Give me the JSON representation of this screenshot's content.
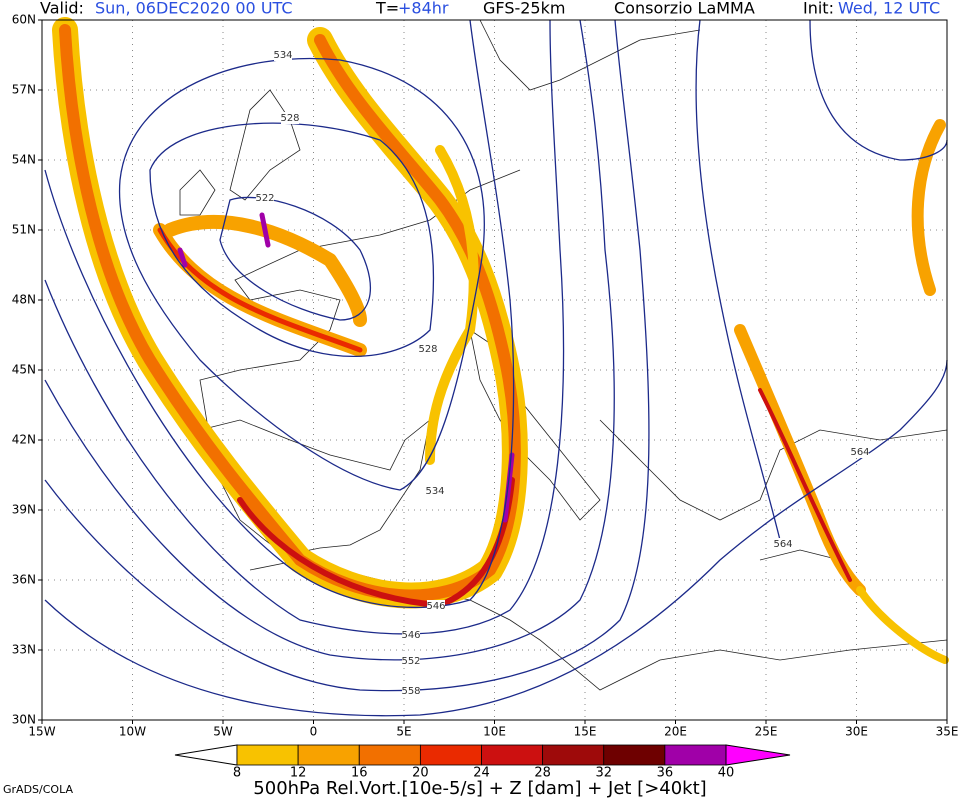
{
  "header": {
    "valid_label": "Valid:",
    "valid_date": "Sun, 06DEC2020 00 UTC",
    "lead_label": "T=",
    "lead": "+84hr",
    "model": "GFS-25km",
    "source": "Consorzio LaMMA",
    "init_label": "Init:",
    "init": "Wed, 12 UTC"
  },
  "map": {
    "lat_labels": [
      "60N",
      "57N",
      "54N",
      "51N",
      "48N",
      "45N",
      "42N",
      "39N",
      "36N",
      "33N",
      "30N"
    ],
    "lon_labels": [
      "15W",
      "10W",
      "5W",
      "0",
      "5E",
      "10E",
      "15E",
      "20E",
      "25E",
      "30E",
      "35E"
    ],
    "contour_labels": [
      "534",
      "528",
      "522",
      "528",
      "534",
      "546",
      "546",
      "552",
      "558",
      "564",
      "564"
    ]
  },
  "colorbar": {
    "ticks": [
      8,
      12,
      16,
      20,
      24,
      28,
      32,
      36,
      40
    ],
    "colors": [
      "#ffffff",
      "#f8c200",
      "#f8a200",
      "#f27000",
      "#ea2a00",
      "#cc1010",
      "#9e0a0a",
      "#6e0000",
      "#a000a8",
      "#ff00ff"
    ]
  },
  "title": "500hPa Rel.Vort.[10e-5/s] + Z [dam] + Jet [>40kt]",
  "footer": "GrADS/COLA"
}
